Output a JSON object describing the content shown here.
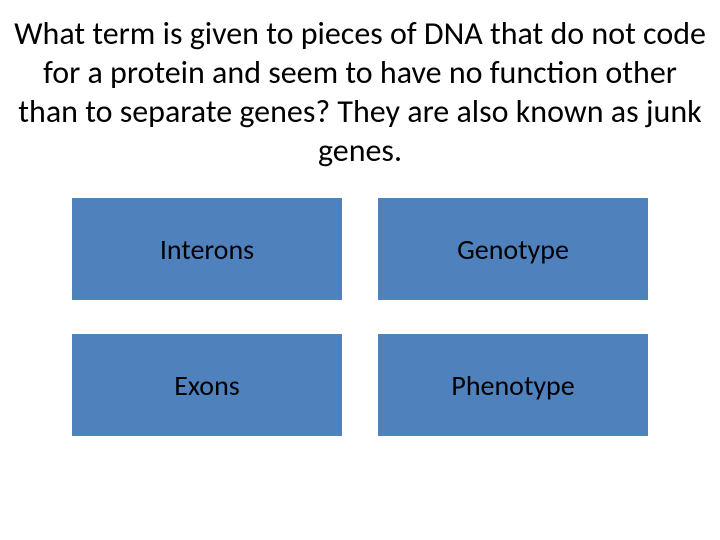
{
  "question": {
    "text": "What term is given to pieces of DNA that do not code for a protein and seem to have no function other than to separate genes? They are also known as junk genes.",
    "fontsize": 32,
    "color": "#000000"
  },
  "options": [
    {
      "label": "Interons"
    },
    {
      "label": "Genotype"
    },
    {
      "label": "Exons"
    },
    {
      "label": "Phenotype"
    }
  ],
  "styling": {
    "background_color": "#ffffff",
    "option_bg_color": "#4f81bd",
    "option_text_color": "#000000",
    "option_fontsize": 28,
    "option_height": 102,
    "grid_column_gap": 36,
    "grid_row_gap": 34
  }
}
